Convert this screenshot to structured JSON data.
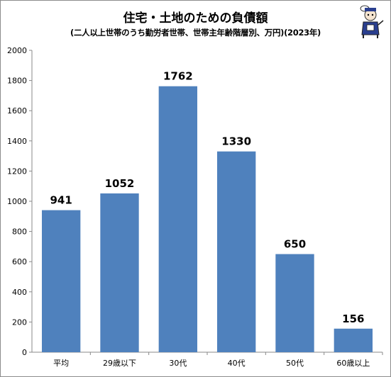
{
  "chart_data": {
    "type": "bar",
    "title": "住宅・土地のための負債額",
    "subtitle": "(二人以上世帯のうち勤労者世帯、世帯主年齢階層別、万円)(2023年)",
    "categories": [
      "平均",
      "29歳以下",
      "30代",
      "40代",
      "50代",
      "60歳以上"
    ],
    "values": [
      941,
      1052,
      1762,
      1330,
      650,
      156
    ],
    "ylim": [
      0,
      2000
    ],
    "yticks": [
      0,
      200,
      400,
      600,
      800,
      1000,
      1200,
      1400,
      1600,
      1800,
      2000
    ],
    "grid": false,
    "legend": "none",
    "bar_color": "#4f81bd"
  }
}
